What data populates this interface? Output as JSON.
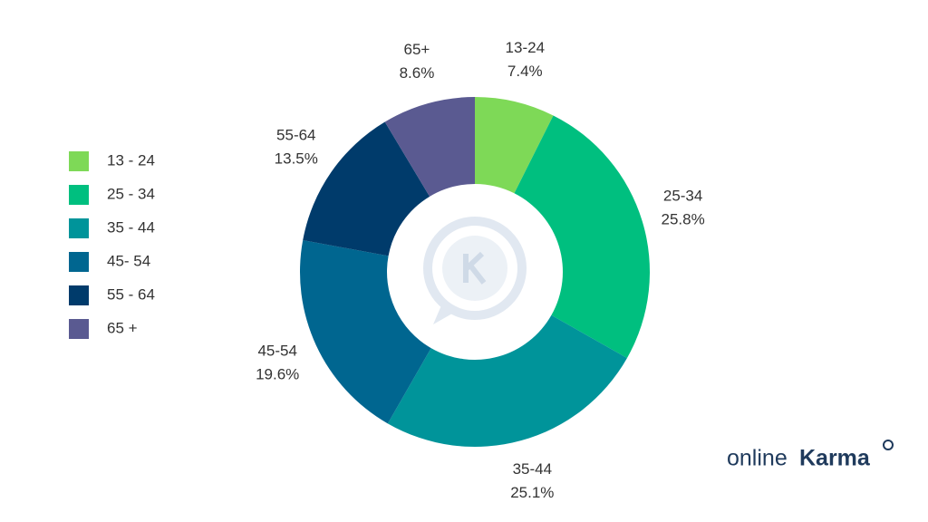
{
  "chart_data": {
    "type": "donut",
    "categories": [
      "13 - 24",
      "25 - 34",
      "35 - 44",
      "45- 54",
      "55 - 64",
      "65 +"
    ],
    "slice_labels": [
      "13-24",
      "25-34",
      "35-44",
      "45-54",
      "55-64",
      "65+"
    ],
    "values": [
      7.4,
      25.8,
      25.1,
      19.6,
      13.5,
      8.6
    ],
    "value_labels": [
      "7.4%",
      "25.8%",
      "25.1%",
      "19.6%",
      "13.5%",
      "8.6%"
    ],
    "colors": [
      "#7ed957",
      "#00bf7f",
      "#00949a",
      "#006690",
      "#003b6b",
      "#5a5a91"
    ],
    "legend": "left"
  },
  "logo": [
    "online",
    "Karma"
  ]
}
